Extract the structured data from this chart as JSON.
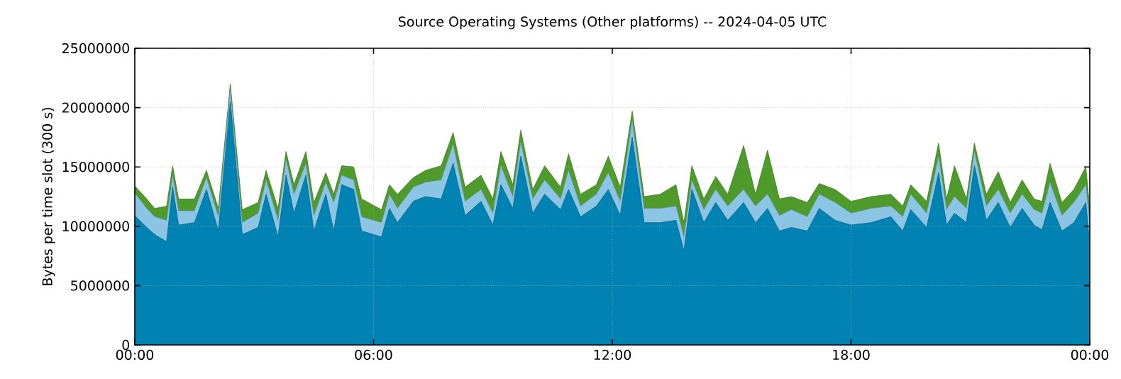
{
  "chart_data": {
    "type": "area",
    "title": "Source Operating Systems (Other platforms) -- 2024-04-05 UTC",
    "ylabel": "Bytes per time slot (300 s)",
    "stacked": true,
    "grid": true,
    "x": [
      0,
      0.3,
      0.5,
      0.8,
      0.95,
      1.1,
      1.5,
      1.8,
      2.1,
      2.4,
      2.7,
      3.1,
      3.3,
      3.6,
      3.8,
      4.0,
      4.3,
      4.5,
      4.8,
      5.0,
      5.2,
      5.5,
      5.7,
      6.2,
      6.4,
      6.6,
      7.0,
      7.3,
      7.7,
      8.0,
      8.3,
      8.7,
      9.0,
      9.2,
      9.5,
      9.7,
      10.0,
      10.3,
      10.7,
      10.9,
      11.2,
      11.6,
      11.9,
      12.2,
      12.5,
      12.8,
      13.2,
      13.6,
      13.8,
      14.0,
      14.3,
      14.6,
      14.9,
      15.3,
      15.6,
      15.9,
      16.2,
      16.5,
      16.9,
      17.2,
      17.6,
      18.0,
      18.5,
      19.0,
      19.3,
      19.5,
      19.9,
      20.2,
      20.4,
      20.6,
      20.9,
      21.1,
      21.4,
      21.7,
      22.0,
      22.3,
      22.6,
      22.8,
      23.0,
      23.3,
      23.6,
      23.9,
      24
    ],
    "series": [
      {
        "color": "#0083b3",
        "values": [
          10900000.0,
          9900000.0,
          9300000.0,
          8700000.0,
          13300000.0,
          10100000.0,
          10300000.0,
          13100000.0,
          9600000.0,
          20500000.0,
          9300000.0,
          9900000.0,
          12700000.0,
          9100000.0,
          14300000.0,
          11100000.0,
          14300000.0,
          9600000.0,
          12700000.0,
          9600000.0,
          13500000.0,
          13100000.0,
          9600000.0,
          9100000.0,
          11500000.0,
          10300000.0,
          12100000.0,
          12500000.0,
          12300000.0,
          15300000.0,
          10900000.0,
          12100000.0,
          10100000.0,
          13500000.0,
          11500000.0,
          15900000.0,
          11100000.0,
          12700000.0,
          11400000.0,
          13100000.0,
          10800000.0,
          11700000.0,
          13100000.0,
          10900000.0,
          17500000.0,
          10300000.0,
          10300000.0,
          10500000.0,
          7900000.0,
          13100000.0,
          10300000.0,
          12000000.0,
          10500000.0,
          12000000.0,
          10300000.0,
          11500000.0,
          9600000.0,
          9900000.0,
          9600000.0,
          11500000.0,
          10500000.0,
          10100000.0,
          10300000.0,
          10800000.0,
          9600000.0,
          11400000.0,
          9900000.0,
          14500000.0,
          10100000.0,
          11100000.0,
          10300000.0,
          15100000.0,
          10500000.0,
          12000000.0,
          9900000.0,
          11500000.0,
          10100000.0,
          9700000.0,
          12000000.0,
          9600000.0,
          10300000.0,
          12000000.0,
          8400000.0
        ]
      },
      {
        "color": "#8cc4e4",
        "values": [
          1900000.0,
          1600000.0,
          1500000.0,
          1800000.0,
          1000000.0,
          1200000.0,
          1000000.0,
          1000000.0,
          1200000.0,
          1000000.0,
          1000000.0,
          1200000.0,
          1200000.0,
          1400000.0,
          1300000.0,
          1600000.0,
          1000000.0,
          1300000.0,
          1000000.0,
          2400000.0,
          800000.0,
          800000.0,
          1200000.0,
          1200000.0,
          1200000.0,
          1200000.0,
          1200000.0,
          1200000.0,
          1600000.0,
          1600000.0,
          1200000.0,
          1000000.0,
          1000000.0,
          1600000.0,
          1000000.0,
          1200000.0,
          1200000.0,
          1200000.0,
          900000.0,
          1600000.0,
          900000.0,
          1000000.0,
          1400000.0,
          1200000.0,
          1400000.0,
          1200000.0,
          1200000.0,
          1200000.0,
          1200000.0,
          800000.0,
          1100000.0,
          1100000.0,
          1200000.0,
          1100000.0,
          1400000.0,
          1200000.0,
          1300000.0,
          1500000.0,
          1200000.0,
          1200000.0,
          1500000.0,
          1000000.0,
          1200000.0,
          900000.0,
          1200000.0,
          1300000.0,
          1200000.0,
          1400000.0,
          1300000.0,
          1400000.0,
          1200000.0,
          1200000.0,
          1200000.0,
          1100000.0,
          1200000.0,
          1200000.0,
          1300000.0,
          1400000.0,
          1700000.0,
          1300000.0,
          1700000.0,
          1500000.0,
          1900000.0
        ]
      },
      {
        "color": "#4e9a2a",
        "values": [
          600000.0,
          800000.0,
          700000.0,
          1200000.0,
          800000.0,
          1000000.0,
          1000000.0,
          600000.0,
          700000.0,
          500000.0,
          1100000.0,
          900000.0,
          800000.0,
          1000000.0,
          700000.0,
          800000.0,
          1000000.0,
          1100000.0,
          800000.0,
          700000.0,
          800000.0,
          1100000.0,
          1500000.0,
          1100000.0,
          800000.0,
          1200000.0,
          800000.0,
          1000000.0,
          1200000.0,
          1000000.0,
          1200000.0,
          1200000.0,
          1200000.0,
          1200000.0,
          1000000.0,
          1000000.0,
          800000.0,
          1200000.0,
          1000000.0,
          1400000.0,
          1000000.0,
          800000.0,
          1400000.0,
          1200000.0,
          800000.0,
          1000000.0,
          1200000.0,
          1800000.0,
          1200000.0,
          1200000.0,
          900000.0,
          1100000.0,
          1000000.0,
          3700000.0,
          1000000.0,
          3700000.0,
          1400000.0,
          1100000.0,
          1200000.0,
          900000.0,
          1100000.0,
          1000000.0,
          1000000.0,
          1000000.0,
          900000.0,
          800000.0,
          1000000.0,
          1100000.0,
          900000.0,
          2600000.0,
          800000.0,
          700000.0,
          1000000.0,
          1500000.0,
          900000.0,
          1200000.0,
          900000.0,
          1000000.0,
          1600000.0,
          1100000.0,
          1100000.0,
          1500000.0,
          1200000.0
        ]
      }
    ],
    "xlim": [
      0,
      24
    ],
    "ylim": [
      0,
      25000000
    ],
    "xticks": [
      {
        "value": 0,
        "label": "00:00"
      },
      {
        "value": 6,
        "label": "06:00"
      },
      {
        "value": 12,
        "label": "12:00"
      },
      {
        "value": 18,
        "label": "18:00"
      },
      {
        "value": 24,
        "label": "00:00"
      }
    ],
    "yticks": [
      0,
      5000000,
      10000000,
      15000000,
      20000000,
      25000000
    ]
  }
}
